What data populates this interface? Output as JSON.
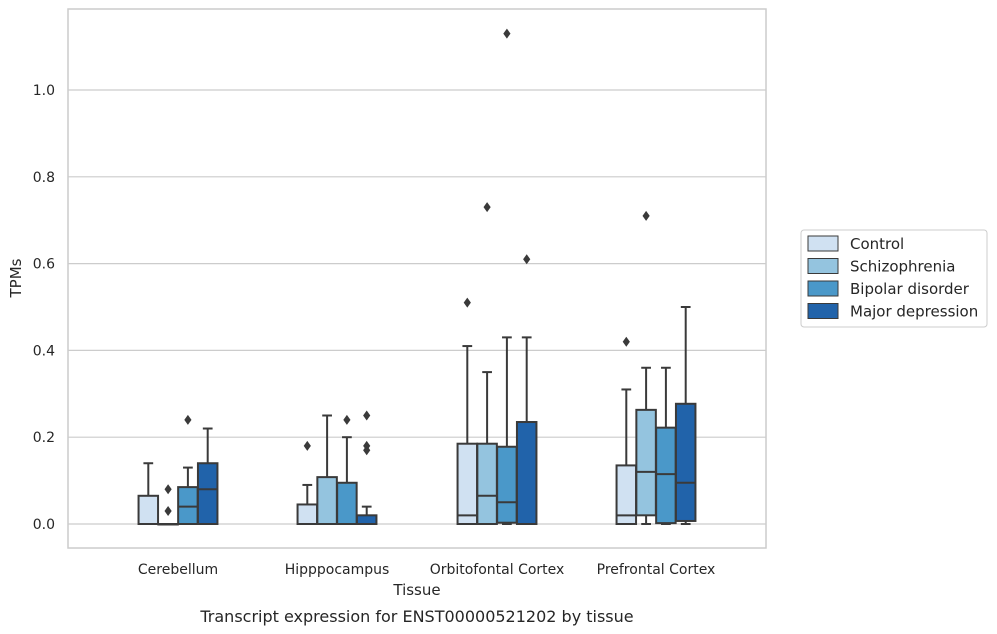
{
  "caption": "Transcript expression for ENST00000521202 by tissue",
  "chart_data": {
    "type": "box",
    "xlabel": "Tissue",
    "ylabel": "TPMs",
    "ylim": [
      -0.055,
      1.18
    ],
    "yticks": [
      0.0,
      0.2,
      0.4,
      0.6,
      0.8,
      1.0
    ],
    "ytick_labels": [
      "0.0",
      "0.2",
      "0.4",
      "0.6",
      "0.8",
      "1.0"
    ],
    "grid": "horizontal",
    "legend_position": "right",
    "categories": [
      "Cerebellum",
      "Hipppocampus",
      "Orbitofontal Cortex",
      "Prefrontal Cortex"
    ],
    "series": [
      {
        "name": "Control",
        "color": "#d0e1f2",
        "boxes": [
          {
            "whisker_low": 0.0,
            "q1": 0.0,
            "median": 0.0,
            "q3": 0.065,
            "whisker_high": 0.14,
            "outliers": []
          },
          {
            "whisker_low": 0.0,
            "q1": 0.0,
            "median": 0.0,
            "q3": 0.045,
            "whisker_high": 0.09,
            "outliers": [
              0.18
            ]
          },
          {
            "whisker_low": 0.0,
            "q1": 0.0,
            "median": 0.02,
            "q3": 0.185,
            "whisker_high": 0.41,
            "outliers": [
              0.51
            ]
          },
          {
            "whisker_low": 0.0,
            "q1": 0.0,
            "median": 0.02,
            "q3": 0.135,
            "whisker_high": 0.31,
            "outliers": [
              0.42
            ]
          }
        ]
      },
      {
        "name": "Schizophrenia",
        "color": "#94c4df",
        "boxes": [
          {
            "whisker_low": 0.0,
            "q1": 0.0,
            "median": 0.0,
            "q3": 0.0,
            "whisker_high": 0.0,
            "outliers": [
              0.03,
              0.08
            ]
          },
          {
            "whisker_low": 0.0,
            "q1": 0.0,
            "median": 0.0,
            "q3": 0.108,
            "whisker_high": 0.25,
            "outliers": []
          },
          {
            "whisker_low": 0.0,
            "q1": 0.0,
            "median": 0.065,
            "q3": 0.185,
            "whisker_high": 0.35,
            "outliers": [
              0.73
            ]
          },
          {
            "whisker_low": 0.0,
            "q1": 0.02,
            "median": 0.12,
            "q3": 0.263,
            "whisker_high": 0.36,
            "outliers": [
              0.71
            ]
          }
        ]
      },
      {
        "name": "Bipolar disorder",
        "color": "#4a98c9",
        "boxes": [
          {
            "whisker_low": 0.0,
            "q1": 0.0,
            "median": 0.04,
            "q3": 0.085,
            "whisker_high": 0.13,
            "outliers": [
              0.24
            ]
          },
          {
            "whisker_low": 0.0,
            "q1": 0.0,
            "median": 0.0,
            "q3": 0.095,
            "whisker_high": 0.2,
            "outliers": [
              0.24
            ]
          },
          {
            "whisker_low": 0.0,
            "q1": 0.003,
            "median": 0.05,
            "q3": 0.178,
            "whisker_high": 0.43,
            "outliers": [
              1.13
            ]
          },
          {
            "whisker_low": 0.0,
            "q1": 0.002,
            "median": 0.115,
            "q3": 0.222,
            "whisker_high": 0.36,
            "outliers": []
          }
        ]
      },
      {
        "name": "Major depression",
        "color": "#2163aa",
        "boxes": [
          {
            "whisker_low": 0.0,
            "q1": 0.0,
            "median": 0.08,
            "q3": 0.14,
            "whisker_high": 0.22,
            "outliers": []
          },
          {
            "whisker_low": 0.0,
            "q1": 0.0,
            "median": 0.0,
            "q3": 0.02,
            "whisker_high": 0.04,
            "outliers": [
              0.17,
              0.18,
              0.25
            ]
          },
          {
            "whisker_low": 0.0,
            "q1": 0.0,
            "median": 0.0,
            "q3": 0.235,
            "whisker_high": 0.43,
            "outliers": [
              0.61
            ]
          },
          {
            "whisker_low": 0.0,
            "q1": 0.007,
            "median": 0.095,
            "q3": 0.277,
            "whisker_high": 0.5,
            "outliers": []
          }
        ]
      }
    ]
  }
}
